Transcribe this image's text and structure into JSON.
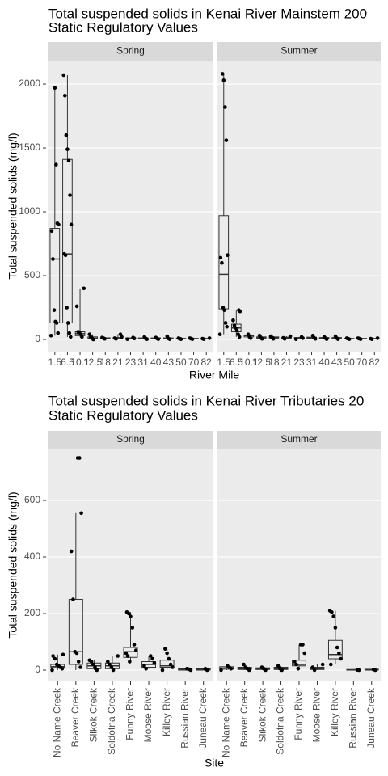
{
  "chart_data": [
    {
      "type": "box",
      "title": "Total suspended solids in Kenai River Mainstem  200",
      "subtitle": "Static Regulatory Values",
      "y_label": "Total suspended solids (mg/l)",
      "x_label": "River Mile",
      "categories": [
        "1.5",
        "6.5",
        "10.1",
        "12.5",
        "18",
        "21",
        "23",
        "31",
        "40",
        "43",
        "50",
        "70",
        "82"
      ],
      "ylim": [
        -95,
        2184
      ],
      "yticks": [
        0,
        500,
        1000,
        1500,
        2000
      ],
      "grid": true,
      "facets": [
        {
          "name": "Spring",
          "boxes": [
            {
              "min": 30,
              "q1": 130,
              "median": 630,
              "q3": 870,
              "max": 1970,
              "points": [
                30,
                50,
                130,
                140,
                230,
                630,
                850,
                900,
                910,
                1370,
                1970
              ]
            },
            {
              "min": 20,
              "q1": 130,
              "median": 670,
              "q3": 1410,
              "max": 2070,
              "points": [
                20,
                50,
                130,
                250,
                660,
                670,
                900,
                1130,
                1400,
                1490,
                1600,
                1910,
                2070
              ]
            },
            {
              "min": 20,
              "q1": 30,
              "median": 45,
              "q3": 60,
              "max": 400,
              "points": [
                20,
                40,
                55,
                60,
                260,
                400
              ]
            },
            {
              "min": 0,
              "q1": 5,
              "median": 10,
              "q3": 20,
              "max": 40,
              "points": [
                0,
                10,
                20,
                40
              ]
            },
            {
              "min": 5,
              "q1": 7,
              "median": 10,
              "q3": 13,
              "max": 15,
              "points": [
                5,
                10,
                15
              ]
            },
            {
              "min": 5,
              "q1": 7,
              "median": 10,
              "q3": 15,
              "max": 40,
              "points": [
                5,
                10,
                20,
                40
              ]
            },
            {
              "min": 2,
              "q1": 5,
              "median": 8,
              "q3": 12,
              "max": 15,
              "points": [
                2,
                8,
                15
              ]
            },
            {
              "min": 2,
              "q1": 5,
              "median": 8,
              "q3": 12,
              "max": 20,
              "points": [
                2,
                8,
                20
              ]
            },
            {
              "min": 2,
              "q1": 5,
              "median": 8,
              "q3": 12,
              "max": 15,
              "points": [
                2,
                8,
                15
              ]
            },
            {
              "min": 2,
              "q1": 5,
              "median": 8,
              "q3": 12,
              "max": 25,
              "points": [
                2,
                8,
                25
              ]
            },
            {
              "min": 2,
              "q1": 4,
              "median": 6,
              "q3": 8,
              "max": 10,
              "points": [
                2,
                6,
                10
              ]
            },
            {
              "min": 2,
              "q1": 4,
              "median": 6,
              "q3": 8,
              "max": 10,
              "points": [
                2,
                6,
                10
              ]
            },
            {
              "min": 2,
              "q1": 4,
              "median": 6,
              "q3": 8,
              "max": 10,
              "points": [
                2,
                6,
                10
              ]
            }
          ]
        },
        {
          "name": "Summer",
          "boxes": [
            {
              "min": 40,
              "q1": 240,
              "median": 510,
              "q3": 970,
              "max": 2080,
              "points": [
                40,
                100,
                130,
                230,
                250,
                600,
                640,
                660,
                1560,
                1820,
                2030,
                2080
              ]
            },
            {
              "min": 20,
              "q1": 60,
              "median": 90,
              "q3": 120,
              "max": 230,
              "points": [
                20,
                40,
                70,
                90,
                110,
                150,
                220,
                230
              ]
            },
            {
              "min": 10,
              "q1": 20,
              "median": 30,
              "q3": 35,
              "max": 40,
              "points": [
                10,
                20,
                40
              ]
            },
            {
              "min": 5,
              "q1": 10,
              "median": 15,
              "q3": 20,
              "max": 30,
              "points": [
                5,
                15,
                30
              ]
            },
            {
              "min": 5,
              "q1": 10,
              "median": 15,
              "q3": 20,
              "max": 25,
              "points": [
                5,
                15,
                25
              ]
            },
            {
              "min": 5,
              "q1": 8,
              "median": 12,
              "q3": 18,
              "max": 25,
              "points": [
                5,
                12,
                25
              ]
            },
            {
              "min": 2,
              "q1": 5,
              "median": 10,
              "q3": 15,
              "max": 20,
              "points": [
                2,
                10,
                20
              ]
            },
            {
              "min": 5,
              "q1": 8,
              "median": 12,
              "q3": 18,
              "max": 30,
              "points": [
                5,
                12,
                30
              ]
            },
            {
              "min": 2,
              "q1": 5,
              "median": 10,
              "q3": 15,
              "max": 20,
              "points": [
                2,
                10,
                20
              ]
            },
            {
              "min": 2,
              "q1": 5,
              "median": 10,
              "q3": 15,
              "max": 25,
              "points": [
                2,
                10,
                25
              ]
            },
            {
              "min": 2,
              "q1": 4,
              "median": 6,
              "q3": 8,
              "max": 10,
              "points": [
                2,
                6,
                10
              ]
            },
            {
              "min": 2,
              "q1": 4,
              "median": 6,
              "q3": 8,
              "max": 10,
              "points": [
                2,
                6,
                10
              ]
            },
            {
              "min": 2,
              "q1": 4,
              "median": 6,
              "q3": 8,
              "max": 10,
              "points": [
                2,
                6,
                10
              ]
            }
          ]
        }
      ]
    },
    {
      "type": "box",
      "title": "Total suspended solids in Kenai River Tributaries  20",
      "subtitle": "Static Regulatory Values",
      "y_label": "Total suspended solids (mg/l)",
      "x_label": "Site",
      "categories": [
        "No Name Creek",
        "Beaver Creek",
        "Slikok Creek",
        "Soldotna Creek",
        "Funny River",
        "Moose River",
        "Killey River",
        "Russian River",
        "Juneau Creek"
      ],
      "ylim": [
        -40,
        783
      ],
      "yticks": [
        0,
        200,
        400,
        600
      ],
      "grid": true,
      "facets": [
        {
          "name": "Spring",
          "boxes": [
            {
              "min": 0,
              "q1": 8,
              "median": 12,
              "q3": 20,
              "max": 55,
              "points": [
                0,
                5,
                10,
                15,
                20,
                40,
                50,
                55
              ]
            },
            {
              "min": 0,
              "q1": 20,
              "median": 65,
              "q3": 250,
              "max": 555,
              "points": [
                10,
                30,
                60,
                65,
                250,
                420,
                555,
                750,
                750
              ]
            },
            {
              "min": 0,
              "q1": 5,
              "median": 15,
              "q3": 25,
              "max": 35,
              "points": [
                0,
                10,
                20,
                30,
                35
              ]
            },
            {
              "min": 0,
              "q1": 5,
              "median": 15,
              "q3": 25,
              "max": 50,
              "points": [
                0,
                10,
                20,
                30,
                50
              ]
            },
            {
              "min": 30,
              "q1": 45,
              "median": 65,
              "q3": 80,
              "max": 205,
              "points": [
                30,
                50,
                60,
                70,
                90,
                150,
                190,
                200,
                205
              ]
            },
            {
              "min": 5,
              "q1": 10,
              "median": 20,
              "q3": 30,
              "max": 50,
              "points": [
                5,
                15,
                25,
                40,
                50
              ]
            },
            {
              "min": 0,
              "q1": 10,
              "median": 15,
              "q3": 35,
              "max": 75,
              "points": [
                0,
                10,
                20,
                40,
                60,
                75
              ]
            },
            {
              "min": 0,
              "q1": 0,
              "median": 2,
              "q3": 5,
              "max": 5,
              "points": [
                0,
                3,
                5
              ]
            },
            {
              "min": 0,
              "q1": 0,
              "median": 3,
              "q3": 5,
              "max": 5,
              "points": [
                0,
                5
              ]
            }
          ]
        },
        {
          "name": "Summer",
          "boxes": [
            {
              "min": 0,
              "q1": 3,
              "median": 7,
              "q3": 12,
              "max": 15,
              "points": [
                0,
                5,
                10,
                15
              ]
            },
            {
              "min": 0,
              "q1": 2,
              "median": 5,
              "q3": 10,
              "max": 20,
              "points": [
                0,
                5,
                10,
                20
              ]
            },
            {
              "min": 0,
              "q1": 2,
              "median": 4,
              "q3": 8,
              "max": 10,
              "points": [
                0,
                5,
                10
              ]
            },
            {
              "min": 0,
              "q1": 2,
              "median": 5,
              "q3": 10,
              "max": 15,
              "points": [
                0,
                5,
                15
              ]
            },
            {
              "min": 5,
              "q1": 15,
              "median": 20,
              "q3": 35,
              "max": 90,
              "points": [
                5,
                20,
                30,
                60,
                90,
                90
              ]
            },
            {
              "min": 0,
              "q1": 2,
              "median": 5,
              "q3": 10,
              "max": 20,
              "points": [
                0,
                10,
                20
              ]
            },
            {
              "min": 20,
              "q1": 40,
              "median": 55,
              "q3": 105,
              "max": 210,
              "points": [
                20,
                40,
                60,
                80,
                150,
                190,
                205,
                210
              ]
            },
            {
              "min": 0,
              "q1": 0,
              "median": 1,
              "q3": 2,
              "max": 2,
              "points": [
                0,
                1
              ]
            },
            {
              "min": 0,
              "q1": 0,
              "median": 1,
              "q3": 3,
              "max": 3,
              "points": [
                0,
                2
              ]
            }
          ]
        }
      ]
    }
  ]
}
